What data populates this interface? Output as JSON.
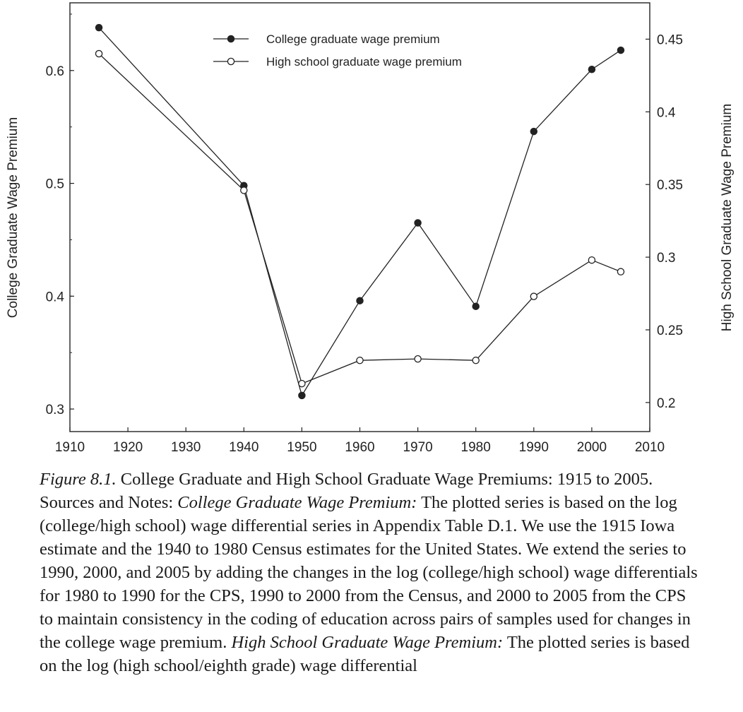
{
  "chart_data": {
    "type": "line",
    "x": [
      1915,
      1940,
      1950,
      1960,
      1970,
      1980,
      1990,
      2000,
      2005
    ],
    "xlim": [
      1910,
      2010
    ],
    "xticks": [
      1910,
      1920,
      1930,
      1940,
      1950,
      1960,
      1970,
      1980,
      1990,
      2000,
      2010
    ],
    "ylabel": "College Graduate Wage Premium",
    "ylim": [
      0.28,
      0.66
    ],
    "yticks": [
      0.3,
      0.4,
      0.5,
      0.6
    ],
    "y2label": "High School Graduate Wage Premium",
    "y2lim": [
      0.18,
      0.475
    ],
    "y2ticks": [
      0.2,
      0.25,
      0.3,
      0.35,
      0.4,
      0.45
    ],
    "legend_position": "top",
    "grid": false,
    "series": [
      {
        "name": "College graduate wage premium",
        "axis": "left",
        "marker": "filled-circle",
        "values": [
          0.638,
          0.498,
          0.312,
          0.396,
          0.465,
          0.391,
          0.546,
          0.601,
          0.618
        ]
      },
      {
        "name": "High school graduate wage premium",
        "axis": "right",
        "marker": "open-circle",
        "values": [
          0.44,
          0.346,
          0.213,
          0.229,
          0.23,
          0.229,
          0.273,
          0.298,
          0.29
        ]
      }
    ]
  },
  "caption": {
    "figure_label": "Figure 8.1.",
    "title_text": " College Graduate and High School Graduate Wage Premiums: 1915 to 2005. Sources and Notes: ",
    "section1_label": "College Graduate Wage Premium:",
    "section1_text": " The plotted series is based on the log (college/high school) wage differential series in Appendix Table D.1. We use the 1915 Iowa estimate and the 1940 to 1980 Census estimates for the United States. We extend the series to 1990, 2000, and 2005 by adding the changes in the log (college/high school) wage differentials for 1980 to 1990 for the CPS, 1990 to 2000 from the Census, and 2000 to 2005 from the CPS to maintain consistency in the coding of education across pairs of samples used for changes in the college wage premium. ",
    "section2_label": "High School Graduate Wage Premium:",
    "section2_text": " The plotted series is based on the log (high school/eighth grade) wage differential"
  }
}
